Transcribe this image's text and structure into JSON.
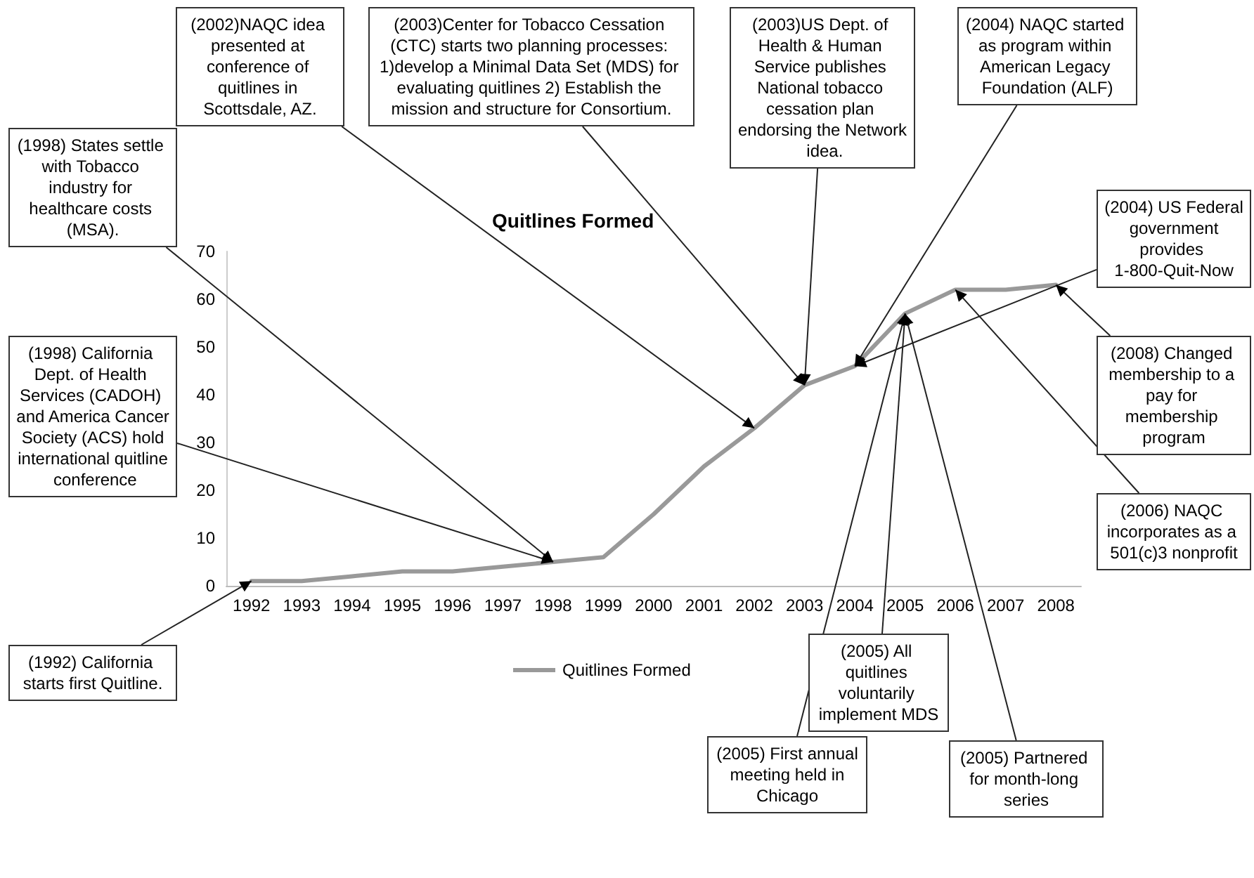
{
  "chart_data": {
    "type": "line",
    "title": "Quitlines Formed",
    "categories": [
      "1992",
      "1993",
      "1994",
      "1995",
      "1996",
      "1997",
      "1998",
      "1999",
      "2000",
      "2001",
      "2002",
      "2003",
      "2004",
      "2005",
      "2006",
      "2007",
      "2008"
    ],
    "series": [
      {
        "name": "Quitlines Formed",
        "color": "#999999",
        "values": [
          1,
          1,
          2,
          3,
          3,
          4,
          5,
          6,
          15,
          25,
          33,
          42,
          46,
          57,
          62,
          62,
          63
        ]
      }
    ],
    "ylim": [
      0,
      70
    ],
    "yticks": [
      0,
      10,
      20,
      30,
      40,
      50,
      60,
      70
    ],
    "grid": false,
    "legend": "bottom",
    "marker": "none",
    "line_style": "solid",
    "annotations": [
      {
        "text": "(1992) California starts first Quitline.",
        "x": "1992",
        "y": 1
      },
      {
        "text": "(1998) States settle with Tobacco industry for healthcare costs (MSA).",
        "x": "1998",
        "y": 5
      },
      {
        "text": "(1998) California Dept. of Health Services (CADOH) and America Cancer Society (ACS) hold international quitline conference",
        "x": "1998",
        "y": 5
      },
      {
        "text": "(2002)NAQC idea presented at conference of quitlines in Scottsdale, AZ.",
        "x": "2002",
        "y": 33
      },
      {
        "text": "(2003)Center for Tobacco Cessation (CTC) starts two planning processes: 1)develop a Minimal Data Set (MDS) for evaluating quitlines 2) Establish the mission and structure for Consortium.",
        "x": "2003",
        "y": 42
      },
      {
        "text": "(2003)US Dept. of Health & Human Service publishes National tobacco cessation plan endorsing the Network idea.",
        "x": "2003",
        "y": 42
      },
      {
        "text": "(2004) NAQC started as program within American Legacy Foundation (ALF)",
        "x": "2004",
        "y": 46
      },
      {
        "text": "(2004) US Federal government provides 1-800-Quit-Now",
        "x": "2004",
        "y": 46
      },
      {
        "text": "(2008) Changed membership to a pay for membership program",
        "x": "2008",
        "y": 63
      },
      {
        "text": "(2006) NAQC incorporates as a 501(c)3 nonprofit",
        "x": "2006",
        "y": 62
      },
      {
        "text": "(2005) First annual meeting held in Chicago",
        "x": "2005",
        "y": 57
      },
      {
        "text": "(2005) All quitlines voluntarily implement MDS",
        "x": "2005",
        "y": 57
      },
      {
        "text": "(2005) Partnered for month-long series",
        "x": "2005",
        "y": 57
      }
    ]
  }
}
